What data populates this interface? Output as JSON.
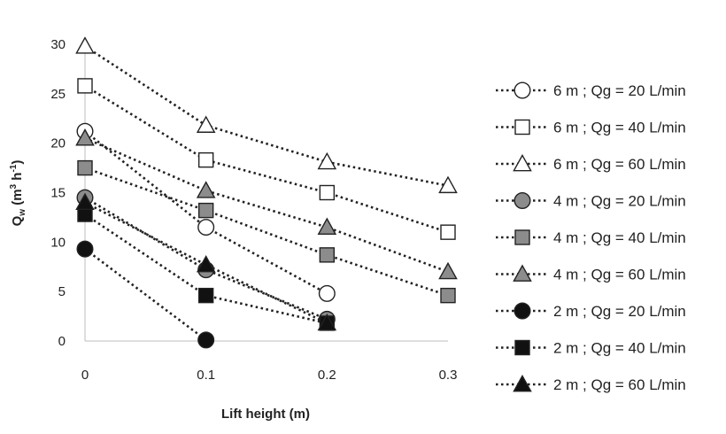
{
  "chart_data": {
    "type": "scatter",
    "xlabel": "Lift height (m)",
    "ylabel": {
      "main": "Q",
      "sub": "w",
      "unit_open": " (m",
      "unit_sup1": "3",
      "unit_mid": " h",
      "unit_sup2": "-1",
      "unit_close": ")"
    },
    "xlim": [
      0,
      0.3
    ],
    "ylim": [
      0,
      30
    ],
    "xticks": [
      "0",
      "0.1",
      "0.2",
      "0.3"
    ],
    "yticks": [
      "0",
      "5",
      "10",
      "15",
      "20",
      "25",
      "30"
    ],
    "legend_position": "right",
    "line_style": "dotted",
    "series": [
      {
        "name": "6 m ; Qg = 20 L/min",
        "marker": "circle",
        "fill": "#ffffff",
        "x": [
          0,
          0.1,
          0.2
        ],
        "y": [
          21.2,
          11.5,
          4.8
        ]
      },
      {
        "name": "6 m ; Qg = 40 L/min",
        "marker": "square",
        "fill": "#ffffff",
        "x": [
          0,
          0.1,
          0.2,
          0.3
        ],
        "y": [
          25.8,
          18.3,
          15.0,
          11.0
        ]
      },
      {
        "name": "6 m ; Qg = 60 L/min",
        "marker": "triangle",
        "fill": "#ffffff",
        "x": [
          0,
          0.1,
          0.2,
          0.3
        ],
        "y": [
          29.8,
          21.8,
          18.1,
          15.7
        ]
      },
      {
        "name": "4 m ; Qg = 20 L/min",
        "marker": "circle",
        "fill": "#8c8c8c",
        "x": [
          0,
          0.1,
          0.2
        ],
        "y": [
          14.5,
          7.2,
          2.2
        ]
      },
      {
        "name": "4 m ; Qg = 40 L/min",
        "marker": "square",
        "fill": "#8c8c8c",
        "x": [
          0,
          0.1,
          0.2,
          0.3
        ],
        "y": [
          17.5,
          13.2,
          8.7,
          4.6
        ]
      },
      {
        "name": "4 m ; Qg = 60 L/min",
        "marker": "triangle",
        "fill": "#8c8c8c",
        "x": [
          0,
          0.1,
          0.2,
          0.3
        ],
        "y": [
          20.5,
          15.2,
          11.5,
          7.0
        ]
      },
      {
        "name": "2 m ; Qg = 20 L/min",
        "marker": "circle",
        "fill": "#111111",
        "x": [
          0,
          0.1
        ],
        "y": [
          9.3,
          0.1
        ]
      },
      {
        "name": "2 m ; Qg = 40 L/min",
        "marker": "square",
        "fill": "#111111",
        "x": [
          0,
          0.1,
          0.2
        ],
        "y": [
          12.8,
          4.6,
          1.8
        ]
      },
      {
        "name": "2 m ; Qg = 60 L/min",
        "marker": "triangle",
        "fill": "#111111",
        "x": [
          0,
          0.1,
          0.2
        ],
        "y": [
          14.0,
          7.7,
          1.8
        ]
      }
    ]
  }
}
